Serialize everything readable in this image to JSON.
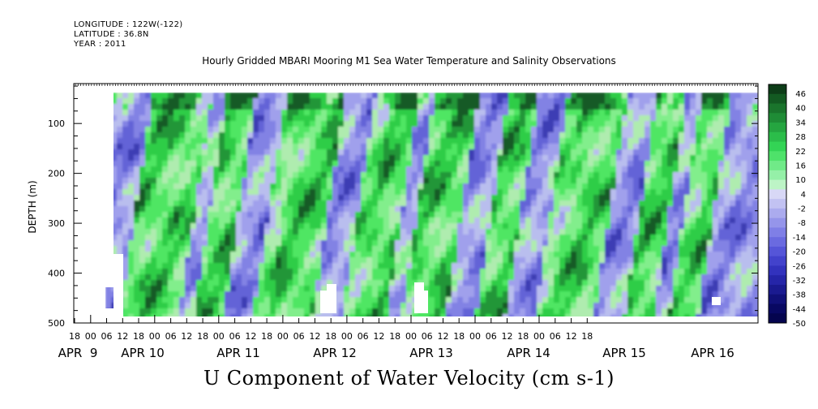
{
  "header": {
    "longitude": "LONGITUDE : 122W(-122)",
    "latitude": "LATITUDE : 36.8N",
    "year": "YEAR : 2011"
  },
  "chart_data": {
    "type": "heatmap",
    "title": "U Component of Water Velocity (cm s-1)",
    "subtitle": "Hourly Gridded MBARI Mooring M1 Sea Water Temperature and Salinity Observations",
    "ylabel": "DEPTH (m)",
    "ylim": [
      500,
      20
    ],
    "y_ticks": [
      100,
      200,
      300,
      400,
      500
    ],
    "x_hour_ticks": [
      "18",
      "00",
      "06",
      "12",
      "18",
      "00",
      "06",
      "12",
      "18",
      "00",
      "06",
      "12",
      "18",
      "00",
      "06",
      "12",
      "18",
      "00",
      "06",
      "12",
      "18",
      "00",
      "06",
      "12",
      "18",
      "00",
      "06",
      "12",
      "18",
      "00",
      "06",
      "12",
      "18"
    ],
    "x_date_ticks": [
      "APR  9",
      "APR 10",
      "APR 11",
      "APR 12",
      "APR 13",
      "APR 14",
      "APR 15",
      "APR 16"
    ],
    "colorbar_labels": [
      "46",
      "40",
      "34",
      "28",
      "22",
      "16",
      "10",
      "4",
      "-2",
      "-8",
      "-14",
      "-20",
      "-26",
      "-32",
      "-38",
      "-44",
      "-50"
    ],
    "colors": {
      "strong_positive": "#1f7a35",
      "positive": "#33dd55",
      "weak_positive": "#a0f0a0",
      "weak_negative": "#b4b4f0",
      "negative": "#7c7ce6",
      "strong_negative": "#2a2a9a"
    }
  }
}
